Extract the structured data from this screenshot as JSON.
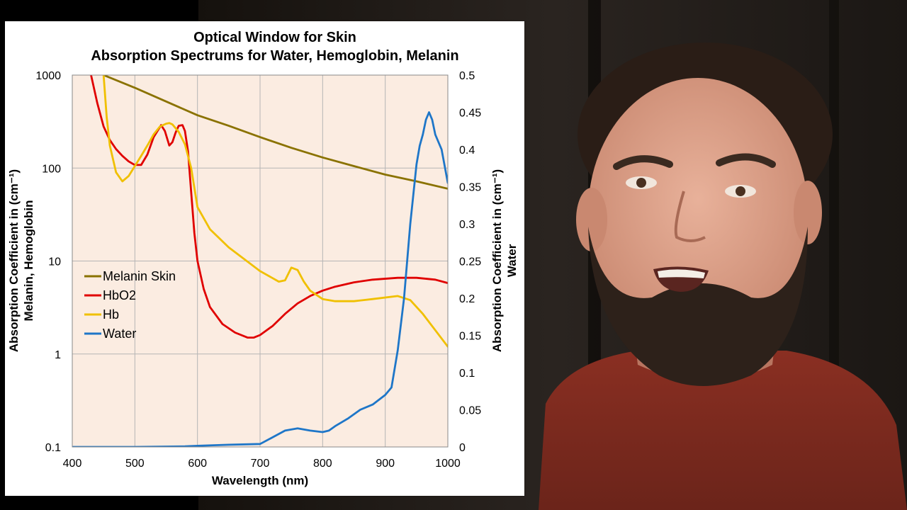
{
  "chart_data": {
    "type": "line",
    "title": "Optical Window for Skin",
    "subtitle": "Absorption Spectrums for Water, Hemoglobin, Melanin",
    "xlabel": "Wavelength (nm)",
    "ylabel_left": "Absorption Coefficient in (cm⁻¹)",
    "ylabel_left_line2": "Melanin, Hemoglobin",
    "ylabel_right": "Absorption Coefficient in (cm⁻¹)",
    "ylabel_right_line2": "Water",
    "xlim": [
      400,
      1000
    ],
    "ylim_left": [
      0.1,
      1000
    ],
    "ylim_right": [
      0,
      0.5
    ],
    "left_scale": "log",
    "x_ticks": [
      "400",
      "500",
      "600",
      "700",
      "800",
      "900",
      "1000"
    ],
    "y_left_ticks": [
      "0.1",
      "1",
      "10",
      "100",
      "1000"
    ],
    "y_right_ticks": [
      "0",
      "0.05",
      "0.1",
      "0.15",
      "0.2",
      "0.25",
      "0.3",
      "0.35",
      "0.4",
      "0.45",
      "0.5"
    ],
    "grid": true,
    "legend": "center-left",
    "series": [
      {
        "name": "Melanin Skin",
        "axis": "left",
        "color": "#8a7200",
        "x": [
          450,
          500,
          550,
          600,
          650,
          700,
          750,
          800,
          850,
          900,
          950,
          1000
        ],
        "y": [
          1000,
          730,
          520,
          370,
          285,
          215,
          165,
          130,
          105,
          85,
          72,
          60
        ]
      },
      {
        "name": "HbO2",
        "axis": "left",
        "color": "#e00000",
        "x": [
          430,
          440,
          450,
          460,
          470,
          480,
          490,
          500,
          510,
          520,
          530,
          542,
          548,
          555,
          560,
          565,
          570,
          576,
          580,
          585,
          590,
          595,
          600,
          610,
          620,
          640,
          660,
          680,
          690,
          700,
          720,
          740,
          760,
          780,
          800,
          820,
          850,
          880,
          920,
          950,
          980,
          1000
        ],
        "y": [
          1000,
          500,
          280,
          200,
          160,
          135,
          118,
          108,
          108,
          140,
          215,
          290,
          250,
          175,
          190,
          240,
          285,
          290,
          250,
          150,
          55,
          20,
          10,
          5,
          3.2,
          2.1,
          1.7,
          1.5,
          1.5,
          1.6,
          2.0,
          2.7,
          3.5,
          4.2,
          4.8,
          5.3,
          5.9,
          6.3,
          6.6,
          6.6,
          6.3,
          5.8
        ]
      },
      {
        "name": "Hb",
        "axis": "left",
        "color": "#f0c000",
        "x": [
          450,
          455,
          460,
          470,
          480,
          490,
          500,
          510,
          520,
          530,
          540,
          550,
          555,
          560,
          570,
          580,
          590,
          600,
          620,
          650,
          700,
          730,
          740,
          750,
          760,
          770,
          780,
          800,
          820,
          850,
          880,
          920,
          940,
          960,
          980,
          1000
        ],
        "y": [
          1000,
          350,
          175,
          90,
          72,
          82,
          105,
          135,
          175,
          230,
          280,
          300,
          305,
          295,
          245,
          180,
          100,
          38,
          22,
          14,
          7.8,
          6.0,
          6.2,
          8.5,
          8.0,
          6.0,
          4.8,
          3.9,
          3.7,
          3.7,
          3.9,
          4.2,
          3.8,
          2.7,
          1.8,
          1.2
        ]
      },
      {
        "name": "Water",
        "axis": "right",
        "color": "#1e76c8",
        "x": [
          400,
          500,
          580,
          600,
          650,
          700,
          720,
          740,
          760,
          780,
          800,
          810,
          820,
          840,
          860,
          880,
          900,
          910,
          920,
          930,
          940,
          950,
          955,
          960,
          965,
          970,
          975,
          980,
          990,
          1000
        ],
        "y": [
          0.0,
          0.0,
          0.0008,
          0.0015,
          0.003,
          0.004,
          0.013,
          0.022,
          0.025,
          0.022,
          0.02,
          0.022,
          0.028,
          0.038,
          0.05,
          0.057,
          0.07,
          0.08,
          0.13,
          0.2,
          0.3,
          0.38,
          0.405,
          0.42,
          0.44,
          0.45,
          0.44,
          0.42,
          0.4,
          0.355
        ]
      }
    ]
  }
}
